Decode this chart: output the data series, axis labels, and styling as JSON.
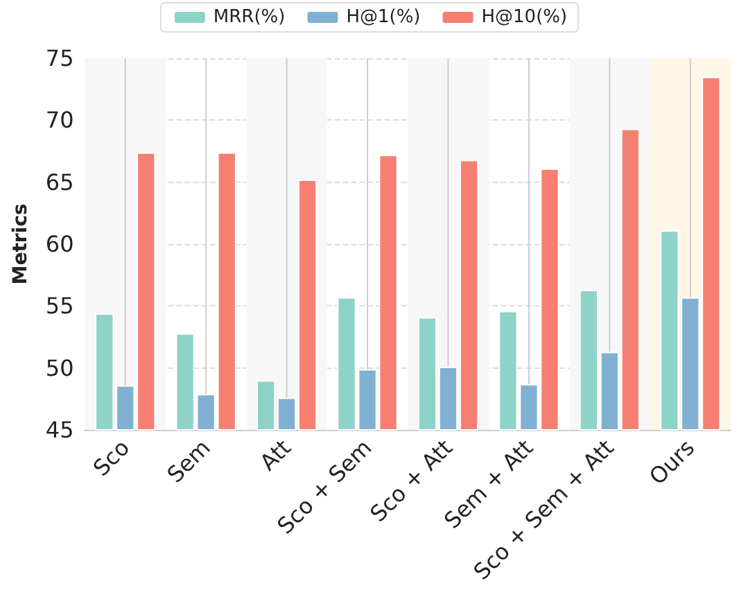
{
  "chart_data": {
    "type": "bar",
    "ylabel": "Metrics",
    "categories": [
      "Sco",
      "Sem",
      "Att",
      "Sco + Sem",
      "Sco + Att",
      "Sem + Att",
      "Sco + Sem + Att",
      "Ours"
    ],
    "series": [
      {
        "name": "MRR(%)",
        "color": "#8dd3c7",
        "values": [
          54.4,
          52.8,
          49.0,
          55.7,
          54.1,
          54.6,
          56.3,
          61.1
        ]
      },
      {
        "name": "H@1(%)",
        "color": "#80b1d3",
        "values": [
          48.6,
          47.9,
          47.6,
          49.9,
          50.1,
          48.7,
          51.3,
          55.7
        ]
      },
      {
        "name": "H@10(%)",
        "color": "#f67f72",
        "values": [
          67.4,
          67.4,
          65.2,
          67.2,
          66.8,
          66.1,
          69.3,
          73.5
        ]
      }
    ],
    "ylim": [
      45,
      75
    ],
    "yticks": [
      45,
      50,
      55,
      60,
      65,
      70,
      75
    ],
    "grid": true,
    "legend": "top",
    "bands": [
      {
        "axis": "x",
        "from": "Sco",
        "to": "Sco",
        "color": "#f7f7f7"
      },
      {
        "axis": "x",
        "from": "Att",
        "to": "Att",
        "color": "#f7f7f7"
      },
      {
        "axis": "x",
        "from": "Sco + Att",
        "to": "Sco + Att",
        "color": "#f7f7f7"
      },
      {
        "axis": "x",
        "from": "Sco + Sem + Att",
        "to": "Sco + Sem + Att",
        "color": "#f7f7f7"
      },
      {
        "axis": "x",
        "from": "Ours",
        "to": "Ours",
        "color": "#fff6e6"
      }
    ]
  }
}
